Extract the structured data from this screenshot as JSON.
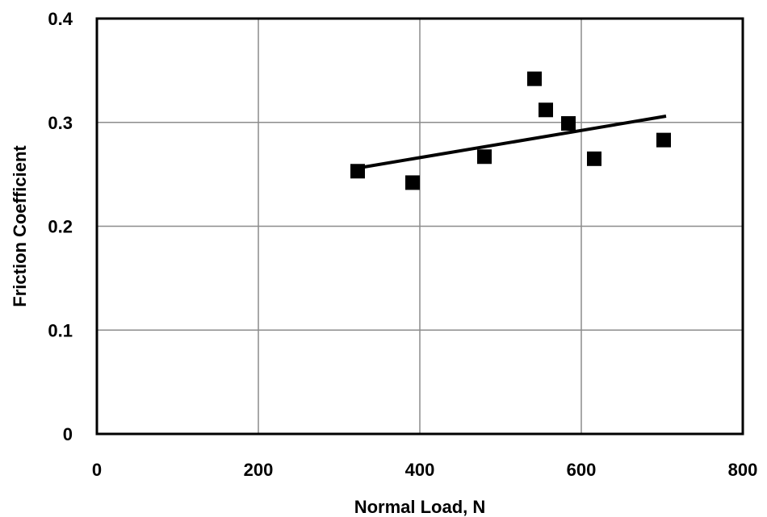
{
  "chart_data": {
    "type": "scatter",
    "title": "",
    "xlabel": "Normal Load, N",
    "ylabel": "Friction Coefficient",
    "xlim": [
      0,
      800
    ],
    "ylim": [
      0,
      0.4
    ],
    "x_ticks": [
      0,
      200,
      400,
      600,
      800
    ],
    "y_ticks": [
      0,
      0.1,
      0.2,
      0.3,
      0.4
    ],
    "x_tick_labels": [
      "0",
      "200",
      "400",
      "600",
      "800"
    ],
    "y_tick_labels": [
      "0",
      "0.1",
      "0.2",
      "0.3",
      "0.4"
    ],
    "grid": true,
    "legend": "none",
    "marker": "square",
    "marker_color": "#000000",
    "series": [
      {
        "points": [
          {
            "x": 323,
            "y": 0.253
          },
          {
            "x": 391,
            "y": 0.242
          },
          {
            "x": 480,
            "y": 0.267
          },
          {
            "x": 542,
            "y": 0.342
          },
          {
            "x": 556,
            "y": 0.312
          },
          {
            "x": 584,
            "y": 0.299
          },
          {
            "x": 616,
            "y": 0.265
          },
          {
            "x": 702,
            "y": 0.283
          }
        ]
      }
    ],
    "trendline": {
      "type": "linear",
      "start": {
        "x": 323,
        "y": 0.256
      },
      "end": {
        "x": 705,
        "y": 0.306
      },
      "color": "#000000"
    }
  }
}
